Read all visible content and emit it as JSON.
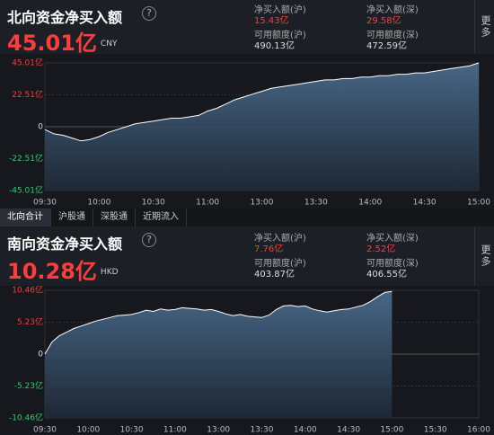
{
  "tabs": [
    "北向合计",
    "沪股通",
    "深股通",
    "近期流入"
  ],
  "chart_data": [
    {
      "type": "area",
      "title": "北向资金净买入额",
      "help": "?",
      "headline": "45.01亿",
      "currency": "CNY",
      "more": "更多",
      "stats": [
        {
          "label": "净买入额(沪)",
          "value": "15.43亿",
          "color": "#ff3b3b"
        },
        {
          "label": "净买入额(深)",
          "value": "29.58亿",
          "color": "#ff3b3b"
        },
        {
          "label": "可用额度(沪)",
          "value": "490.13亿",
          "color": "#dddddd"
        },
        {
          "label": "可用额度(深)",
          "value": "472.59亿",
          "color": "#dddddd"
        }
      ],
      "categories": [
        "09:30",
        null,
        null,
        null,
        null,
        null,
        "10:00",
        null,
        null,
        null,
        null,
        null,
        "10:30",
        null,
        null,
        null,
        null,
        null,
        "11:00",
        null,
        null,
        null,
        null,
        null,
        "13:00",
        null,
        null,
        null,
        null,
        null,
        "13:30",
        null,
        null,
        null,
        null,
        null,
        "14:00",
        null,
        null,
        null,
        null,
        null,
        "14:30",
        null,
        null,
        null,
        null,
        null,
        "15:00"
      ],
      "values": [
        -2,
        -5,
        -6,
        -8,
        -10,
        -9,
        -7,
        -4,
        -2,
        0,
        2,
        3,
        4,
        5,
        6,
        6,
        7,
        8,
        11,
        13,
        16,
        19,
        21,
        23,
        25,
        27,
        28,
        29,
        30,
        31,
        32,
        33,
        33,
        34,
        34,
        35,
        35,
        36,
        36,
        37,
        37,
        38,
        38,
        39,
        40,
        41,
        42,
        43,
        45.01
      ],
      "color": "#ffffff",
      "ylim": [
        -45.01,
        45.01
      ],
      "yticks": [
        {
          "value": 45.01,
          "label": "45.01亿"
        },
        {
          "value": 22.51,
          "label": "22.51亿"
        },
        0,
        {
          "value": -22.51,
          "label": "-22.51亿"
        },
        {
          "value": -45.01,
          "label": "-45.01亿"
        }
      ],
      "grid": true
    },
    {
      "type": "area",
      "title": "南向资金净买入额",
      "help": "?",
      "headline": "10.28亿",
      "currency": "HKD",
      "more": "更多",
      "stats": [
        {
          "label": "净买入额(沪)",
          "value": "7.76亿",
          "color": "#ff3b3b"
        },
        {
          "label": "净买入额(深)",
          "value": "2.52亿",
          "color": "#ff3b3b"
        },
        {
          "label": "可用额度(沪)",
          "value": "403.87亿",
          "color": "#dddddd"
        },
        {
          "label": "可用额度(深)",
          "value": "406.55亿",
          "color": "#dddddd"
        }
      ],
      "categories": [
        "09:30",
        null,
        null,
        null,
        null,
        null,
        "10:00",
        null,
        null,
        null,
        null,
        null,
        "10:30",
        null,
        null,
        null,
        null,
        null,
        "11:00",
        null,
        null,
        null,
        null,
        null,
        "13:00",
        null,
        null,
        null,
        null,
        null,
        "13:30",
        null,
        null,
        null,
        null,
        null,
        "14:00",
        null,
        null,
        null,
        null,
        null,
        "14:30",
        null,
        null,
        null,
        null,
        null,
        "15:00",
        null,
        null,
        null,
        null,
        null,
        "15:30",
        null,
        null,
        null,
        null,
        null,
        "16:00"
      ],
      "values": [
        0,
        2.0,
        3.0,
        3.6,
        4.2,
        4.6,
        5.0,
        5.4,
        5.7,
        6.0,
        6.3,
        6.4,
        6.5,
        6.8,
        7.2,
        7.0,
        7.4,
        7.2,
        7.3,
        7.6,
        7.5,
        7.4,
        7.2,
        7.3,
        7.0,
        6.6,
        6.3,
        6.5,
        6.2,
        6.1,
        6.0,
        6.4,
        7.3,
        7.9,
        8.0,
        7.8,
        7.9,
        7.4,
        7.1,
        6.9,
        7.1,
        7.3,
        7.4,
        7.7,
        8.0,
        8.6,
        9.4,
        10.1,
        10.28,
        null,
        null,
        null,
        null,
        null,
        null,
        null,
        null,
        null,
        null,
        null,
        null
      ],
      "color": "#ffffff",
      "ylim": [
        -10.46,
        10.46
      ],
      "yticks": [
        {
          "value": 10.46,
          "label": "10.46亿"
        },
        {
          "value": 5.23,
          "label": "5.23亿"
        },
        0,
        {
          "value": -5.23,
          "label": "-5.23亿"
        },
        {
          "value": -10.46,
          "label": "-10.46亿"
        }
      ],
      "grid": true
    }
  ]
}
